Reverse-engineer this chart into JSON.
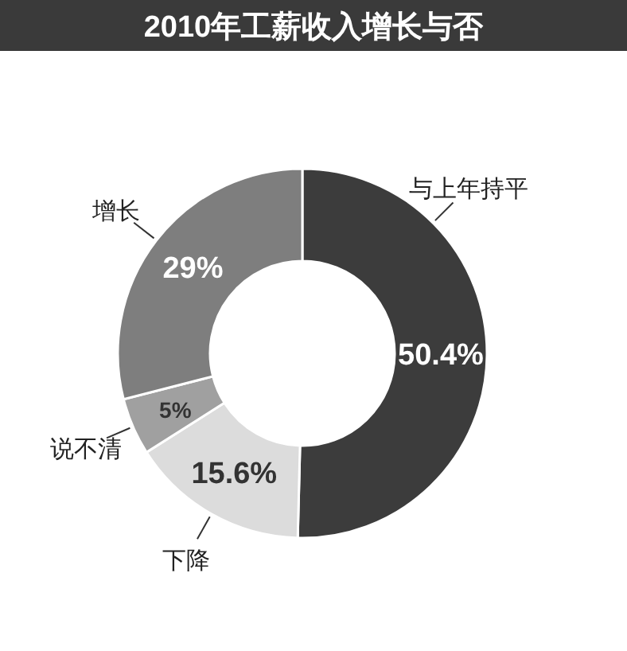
{
  "chart_data": {
    "type": "donut",
    "title": "2010年工薪收入增长与否",
    "categories": [
      "与上年持平",
      "下降",
      "说不清",
      "增长"
    ],
    "values": [
      50.4,
      15.6,
      5,
      29
    ],
    "value_labels": [
      "50.4%",
      "15.6%",
      "5%",
      "29%"
    ],
    "colors": [
      "#3c3c3c",
      "#dcdcdc",
      "#a0a0a0",
      "#7e7e7e"
    ]
  }
}
